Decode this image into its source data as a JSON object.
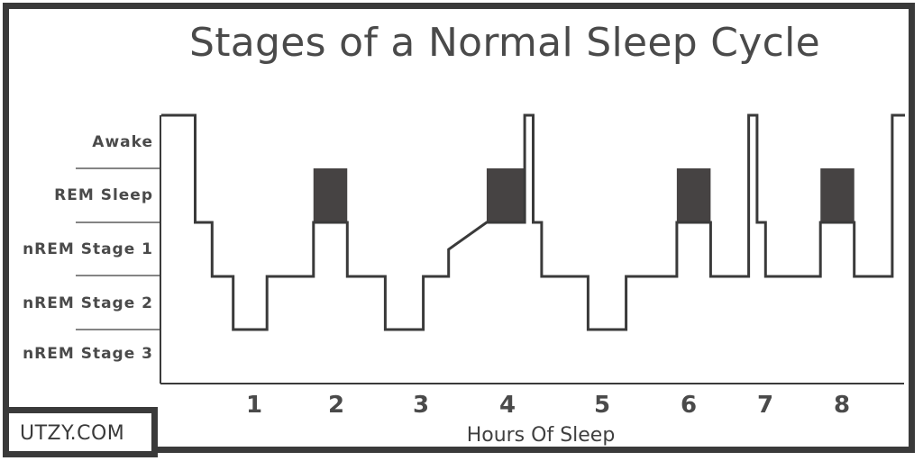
{
  "chart_data": {
    "type": "line",
    "title": "Stages of a Normal Sleep Cycle",
    "xlabel": "Hours Of Sleep",
    "ylabel": "",
    "x_ticks": [
      "1",
      "2",
      "3",
      "4",
      "5",
      "6",
      "7",
      "8"
    ],
    "y_categories": [
      "Awake",
      "REM Sleep",
      "nREM Stage 1",
      "nREM Stage 2",
      "nREM Stage 3"
    ],
    "xlim": [
      0,
      8.5
    ],
    "series": [
      {
        "points": [
          {
            "x": 0.0,
            "stage": "Awake"
          },
          {
            "x": 0.4,
            "stage": "Awake"
          },
          {
            "x": 0.4,
            "stage": "nREM Stage 1"
          },
          {
            "x": 0.6,
            "stage": "nREM Stage 1"
          },
          {
            "x": 0.6,
            "stage": "nREM Stage 2"
          },
          {
            "x": 0.85,
            "stage": "nREM Stage 2"
          },
          {
            "x": 0.85,
            "stage": "nREM Stage 3"
          },
          {
            "x": 1.25,
            "stage": "nREM Stage 3"
          },
          {
            "x": 1.25,
            "stage": "nREM Stage 2"
          },
          {
            "x": 1.8,
            "stage": "nREM Stage 2"
          },
          {
            "x": 1.8,
            "stage": "nREM Stage 1"
          },
          {
            "x": 2.2,
            "stage": "nREM Stage 1"
          },
          {
            "x": 2.2,
            "stage": "nREM Stage 2"
          },
          {
            "x": 2.65,
            "stage": "nREM Stage 2"
          },
          {
            "x": 2.65,
            "stage": "nREM Stage 3"
          },
          {
            "x": 3.1,
            "stage": "nREM Stage 3"
          },
          {
            "x": 3.1,
            "stage": "nREM Stage 2"
          },
          {
            "x": 3.4,
            "stage": "nREM Stage 2"
          },
          {
            "x": 3.4,
            "stage": "nREM Stage 1.5"
          },
          {
            "x": 3.85,
            "stage": "nREM Stage 1"
          },
          {
            "x": 4.3,
            "stage": "nREM Stage 1"
          },
          {
            "x": 4.3,
            "stage": "Awake"
          },
          {
            "x": 4.4,
            "stage": "Awake"
          },
          {
            "x": 4.4,
            "stage": "nREM Stage 1"
          },
          {
            "x": 4.5,
            "stage": "nREM Stage 1"
          },
          {
            "x": 4.5,
            "stage": "nREM Stage 2"
          },
          {
            "x": 5.05,
            "stage": "nREM Stage 2"
          },
          {
            "x": 5.05,
            "stage": "nREM Stage 3"
          },
          {
            "x": 5.5,
            "stage": "nREM Stage 3"
          },
          {
            "x": 5.5,
            "stage": "nREM Stage 2"
          },
          {
            "x": 6.1,
            "stage": "nREM Stage 2"
          },
          {
            "x": 6.1,
            "stage": "nREM Stage 1"
          },
          {
            "x": 6.5,
            "stage": "nREM Stage 1"
          },
          {
            "x": 6.5,
            "stage": "nREM Stage 2"
          },
          {
            "x": 6.95,
            "stage": "nREM Stage 2"
          },
          {
            "x": 6.95,
            "stage": "Awake"
          },
          {
            "x": 7.05,
            "stage": "Awake"
          },
          {
            "x": 7.05,
            "stage": "nREM Stage 1"
          },
          {
            "x": 7.15,
            "stage": "nREM Stage 1"
          },
          {
            "x": 7.15,
            "stage": "nREM Stage 2"
          },
          {
            "x": 7.8,
            "stage": "nREM Stage 2"
          },
          {
            "x": 7.8,
            "stage": "nREM Stage 1"
          },
          {
            "x": 8.2,
            "stage": "nREM Stage 1"
          },
          {
            "x": 8.2,
            "stage": "nREM Stage 2"
          },
          {
            "x": 8.65,
            "stage": "nREM Stage 2"
          },
          {
            "x": 8.65,
            "stage": "Awake"
          },
          {
            "x": 8.8,
            "stage": "Awake"
          }
        ]
      }
    ],
    "rem_periods": [
      {
        "x_start": 1.8,
        "x_end": 2.2
      },
      {
        "x_start": 3.85,
        "x_end": 4.3
      },
      {
        "x_start": 6.1,
        "x_end": 6.5
      },
      {
        "x_start": 7.8,
        "x_end": 8.2
      }
    ],
    "colors": {
      "line": "#3a3a3a",
      "rem_fill": "#464343",
      "frame": "#3a3a3a"
    }
  },
  "brand": "UTZY.COM"
}
